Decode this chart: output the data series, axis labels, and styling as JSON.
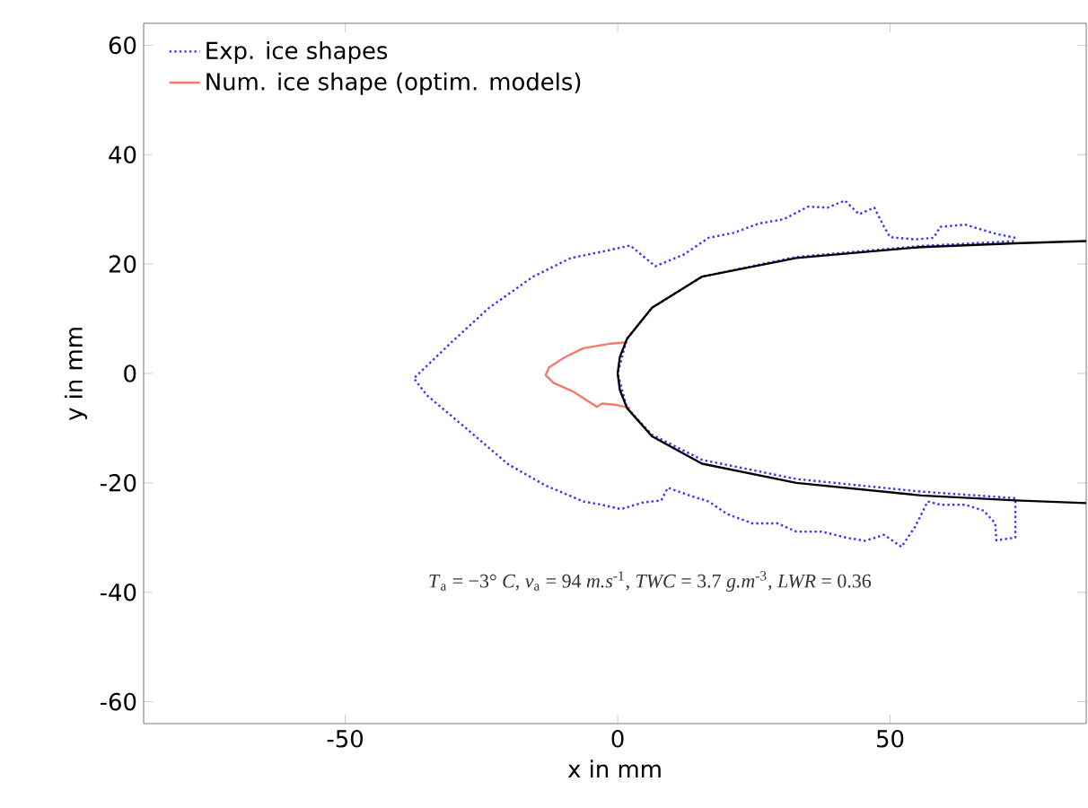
{
  "chart_data": {
    "type": "line",
    "xlabel": "x in mm",
    "ylabel": "y in mm",
    "xlim": [
      -87,
      86
    ],
    "ylim": [
      -64,
      64
    ],
    "xticks": [
      -50,
      0,
      50
    ],
    "yticks": [
      -60,
      -40,
      -20,
      0,
      20,
      40,
      60
    ],
    "grid": false,
    "legend": "top left",
    "marker": "none",
    "annotations": [
      "*T*$_{a}$ = −3° *C*, *v*$_{a}$ = 94 *m.s*$^{-1}$, *TWC* = 3.7 *g.m*$^{-3}$, *LWR* = 0.36"
    ],
    "series": [
      {
        "name": "Exp. ice shapes",
        "color": "#3333ff",
        "line_style": "dotted",
        "x": [
          73,
          69.5,
          63.8,
          59.2,
          58,
          54.6,
          50,
          48.9,
          47.1,
          44.3,
          41.7,
          38.5,
          35,
          30.5,
          25.9,
          21.3,
          16.7,
          12.1,
          6.9,
          2.3,
          -1.7,
          -8.6,
          -15.5,
          -23.6,
          -30.5,
          -37.4,
          -35,
          -28.2,
          -20.1,
          -13.2,
          -6.3,
          -2.9,
          0.6,
          4.6,
          8,
          9.2,
          13.2,
          16.7,
          20.1,
          24.7,
          29.3,
          32.8,
          37.4,
          41.9,
          45.4,
          48.9,
          52.1,
          54.6,
          56.9,
          59.2,
          63.8,
          67.2,
          69.3,
          69.5,
          73,
          73,
          55.7,
          32.8,
          15.5,
          6.3,
          1.7,
          0,
          1.7,
          6.3,
          15.5,
          32.8,
          55.7,
          73
        ],
        "values": [
          24.8,
          25.5,
          27.2,
          26.8,
          24.8,
          24.5,
          24.9,
          26.8,
          30.3,
          29.1,
          31.6,
          30.3,
          30.5,
          28.2,
          27.4,
          25.7,
          24.8,
          21.7,
          19.6,
          23.4,
          22.5,
          21.1,
          17.7,
          12,
          5.7,
          -0.9,
          -4,
          -9.7,
          -16.6,
          -20.5,
          -23.4,
          -24,
          -24.8,
          -23.6,
          -23.2,
          -20.9,
          -22.3,
          -23.4,
          -25.7,
          -27.4,
          -27.4,
          -28.9,
          -28.9,
          -30,
          -30.6,
          -29.5,
          -31.7,
          -28,
          -23.4,
          -24,
          -24,
          -25.1,
          -27.4,
          -30.5,
          -30,
          -22.8,
          -21.6,
          -19.3,
          -15.8,
          -11.2,
          -6.3,
          0,
          6.3,
          12,
          17.7,
          21.3,
          23.3,
          24.2
        ]
      },
      {
        "name": "Num. ice shape (optim. models)",
        "color": "#f47a6b",
        "line_style": "solid",
        "x": [
          1.7,
          -1.7,
          -6.3,
          -9.8,
          -12.6,
          -13.2,
          -11.8,
          -8,
          -5.4,
          -3.8,
          -2.9,
          -0.6,
          2.3
        ],
        "values": [
          5.7,
          5.4,
          4.6,
          2.9,
          1.1,
          -0.3,
          -1.7,
          -3.4,
          -5.1,
          -6.1,
          -5.5,
          -5.7,
          -6.3
        ]
      },
      {
        "color": "#000000",
        "line_style": "solid",
        "x": [
          86,
          73,
          55.7,
          32.8,
          15.5,
          6.3,
          1.7,
          0.4,
          0,
          0.4,
          1.7,
          6.3,
          15.5,
          32.8,
          55.7,
          73,
          86
        ],
        "values": [
          24.2,
          23.8,
          23.1,
          21.1,
          17.7,
          12,
          6.3,
          3,
          0,
          -3,
          -6.3,
          -11.5,
          -16.5,
          -20,
          -22.3,
          -23.2,
          -23.7
        ]
      }
    ]
  }
}
